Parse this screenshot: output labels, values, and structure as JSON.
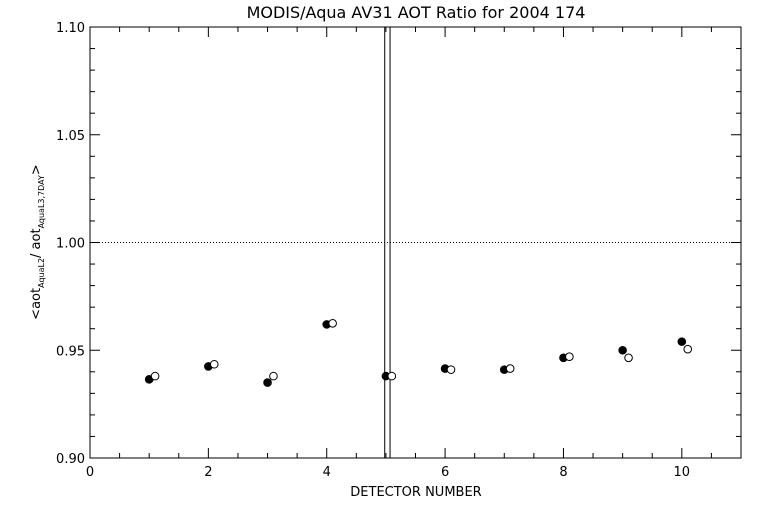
{
  "chart_data": {
    "type": "scatter",
    "title": "MODIS/Aqua AV31 AOT Ratio for 2004 174",
    "xlabel": "DETECTOR NUMBER",
    "ylabel": {
      "open": "<aot",
      "sub1": "AquaL2",
      "mid": "/ aot",
      "sub2": "AquaL3,7DAY",
      "close": ">"
    },
    "xlim": [
      0,
      11
    ],
    "ylim": [
      0.9,
      1.1
    ],
    "x_ticks": [
      0,
      2,
      4,
      6,
      8,
      10
    ],
    "x_tick_labels": [
      "0",
      "2",
      "4",
      "6",
      "8",
      "10"
    ],
    "y_ticks": [
      0.9,
      0.95,
      1.0,
      1.05,
      1.1
    ],
    "y_tick_labels": [
      "0.90",
      "0.95",
      "1.00",
      "1.05",
      "1.10"
    ],
    "reference_line_y": 1.0,
    "vertical_lines_x": [
      4.98,
      5.07
    ],
    "grid": false,
    "series": [
      {
        "marker": "filled-circle",
        "x": [
          1,
          2,
          3,
          4,
          5,
          6,
          7,
          8,
          9,
          10
        ],
        "y": [
          0.9365,
          0.9425,
          0.935,
          0.962,
          0.938,
          0.9415,
          0.941,
          0.9465,
          0.95,
          0.954
        ]
      },
      {
        "marker": "open-circle",
        "x": [
          1.1,
          2.1,
          3.1,
          4.1,
          5.1,
          6.1,
          7.1,
          8.1,
          9.1,
          10.1
        ],
        "y": [
          0.938,
          0.9435,
          0.938,
          0.9625,
          0.938,
          0.941,
          0.9415,
          0.947,
          0.9465,
          0.9505
        ]
      }
    ]
  }
}
